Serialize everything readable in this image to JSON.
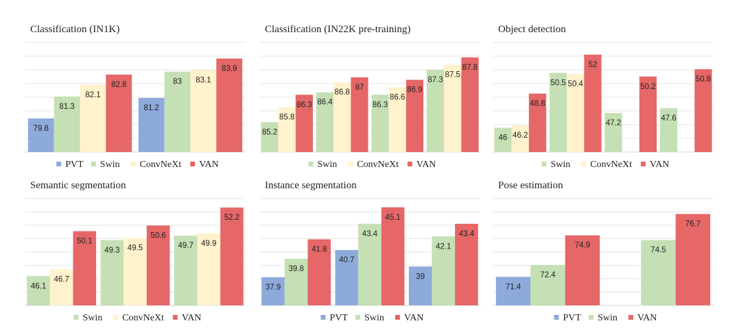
{
  "colors": {
    "PVT": "#8eaadb",
    "Swin": "#c5e0b4",
    "ConvNeXt": "#fff2cc",
    "VAN": "#e56767"
  },
  "chart_data": [
    {
      "type": "bar",
      "title": "Classification (IN1K)",
      "legend": [
        "PVT",
        "Swin",
        "ConvNeXt",
        "VAN"
      ],
      "legend_position": "bottom",
      "ylim": [
        77.5,
        85
      ],
      "grid": true,
      "groups": [
        [
          {
            "series": "PVT",
            "value": 79.8,
            "label": "79.8"
          },
          {
            "series": "Swin",
            "value": 81.3,
            "label": "81.3"
          },
          {
            "series": "ConvNeXt",
            "value": 82.1,
            "label": "82.1"
          },
          {
            "series": "VAN",
            "value": 82.8,
            "label": "82.8"
          }
        ],
        [
          {
            "series": "PVT",
            "value": 81.2,
            "label": "81.2"
          },
          {
            "series": "Swin",
            "value": 83,
            "label": "83"
          },
          {
            "series": "ConvNeXt",
            "value": 83.1,
            "label": "83.1"
          },
          {
            "series": "VAN",
            "value": 83.9,
            "label": "83.9"
          }
        ]
      ]
    },
    {
      "type": "bar",
      "title": "Classification (IN22K pre-training)",
      "legend": [
        "Swin",
        "ConvNeXt",
        "VAN"
      ],
      "legend_position": "bottom",
      "ylim": [
        84.0,
        88.4
      ],
      "grid": true,
      "groups": [
        [
          {
            "series": "Swin",
            "value": 85.2,
            "label": "85.2"
          },
          {
            "series": "ConvNeXt",
            "value": 85.8,
            "label": "85.8"
          },
          {
            "series": "VAN",
            "value": 86.3,
            "label": "86.3"
          }
        ],
        [
          {
            "series": "Swin",
            "value": 86.4,
            "label": "86.4"
          },
          {
            "series": "ConvNeXt",
            "value": 86.8,
            "label": "86.8"
          },
          {
            "series": "VAN",
            "value": 87,
            "label": "87"
          }
        ],
        [
          {
            "series": "Swin",
            "value": 86.3,
            "label": "86.3"
          },
          {
            "series": "ConvNeXt",
            "value": 86.6,
            "label": "86.6"
          },
          {
            "series": "VAN",
            "value": 86.9,
            "label": "86.9"
          }
        ],
        [
          {
            "series": "Swin",
            "value": 87.3,
            "label": "87.3"
          },
          {
            "series": "ConvNeXt",
            "value": 87.5,
            "label": "87.5"
          },
          {
            "series": "VAN",
            "value": 87.8,
            "label": "87.8"
          }
        ]
      ]
    },
    {
      "type": "bar",
      "title": "Object detection",
      "legend": [
        "Swin",
        "ConvNeXt",
        "VAN"
      ],
      "legend_position": "bottom",
      "ylim": [
        44,
        53
      ],
      "grid": true,
      "groups": [
        [
          {
            "series": "Swin",
            "value": 46,
            "label": "46"
          },
          {
            "series": "ConvNeXt",
            "value": 46.2,
            "label": "46.2"
          },
          {
            "series": "VAN",
            "value": 48.8,
            "label": "48.8"
          }
        ],
        [
          {
            "series": "Swin",
            "value": 50.5,
            "label": "50.5"
          },
          {
            "series": "ConvNeXt",
            "value": 50.4,
            "label": "50.4"
          },
          {
            "series": "VAN",
            "value": 52,
            "label": "52"
          }
        ],
        [
          {
            "series": "Swin",
            "value": 47.2,
            "label": "47.2"
          },
          {
            "series": "ConvNeXt",
            "value": null,
            "label": ""
          },
          {
            "series": "VAN",
            "value": 50.2,
            "label": "50.2"
          }
        ],
        [
          {
            "series": "Swin",
            "value": 47.6,
            "label": "47.6"
          },
          {
            "series": "ConvNeXt",
            "value": null,
            "label": ""
          },
          {
            "series": "VAN",
            "value": 50.8,
            "label": "50.8"
          }
        ]
      ]
    },
    {
      "type": "bar",
      "title": "Semantic segmentation",
      "legend": [
        "Swin",
        "ConvNeXt",
        "VAN"
      ],
      "legend_position": "bottom",
      "ylim": [
        43.5,
        53
      ],
      "grid": true,
      "groups": [
        [
          {
            "series": "Swin",
            "value": 46.1,
            "label": "46.1"
          },
          {
            "series": "ConvNeXt",
            "value": 46.7,
            "label": "46.7"
          },
          {
            "series": "VAN",
            "value": 50.1,
            "label": "50.1"
          }
        ],
        [
          {
            "series": "Swin",
            "value": 49.3,
            "label": "49.3"
          },
          {
            "series": "ConvNeXt",
            "value": 49.5,
            "label": "49.5"
          },
          {
            "series": "VAN",
            "value": 50.6,
            "label": "50.6"
          }
        ],
        [
          {
            "series": "Swin",
            "value": 49.7,
            "label": "49.7"
          },
          {
            "series": "ConvNeXt",
            "value": 49.9,
            "label": "49.9"
          },
          {
            "series": "VAN",
            "value": 52.2,
            "label": "52.2"
          }
        ]
      ]
    },
    {
      "type": "bar",
      "title": "Instance segmentation",
      "legend": [
        "PVT",
        "Swin",
        "VAN"
      ],
      "legend_position": "bottom",
      "ylim": [
        35,
        46
      ],
      "grid": true,
      "groups": [
        [
          {
            "series": "PVT",
            "value": 37.9,
            "label": "37.9"
          },
          {
            "series": "Swin",
            "value": 39.8,
            "label": "39.8"
          },
          {
            "series": "VAN",
            "value": 41.8,
            "label": "41.8"
          }
        ],
        [
          {
            "series": "PVT",
            "value": 40.7,
            "label": "40.7"
          },
          {
            "series": "Swin",
            "value": 43.4,
            "label": "43.4"
          },
          {
            "series": "VAN",
            "value": 45.1,
            "label": "45.1"
          }
        ],
        [
          {
            "series": "PVT",
            "value": 39,
            "label": "39"
          },
          {
            "series": "Swin",
            "value": 42.1,
            "label": "42.1"
          },
          {
            "series": "VAN",
            "value": 43.4,
            "label": "43.4"
          }
        ]
      ]
    },
    {
      "type": "bar",
      "title": "Pose estimation",
      "legend": [
        "PVT",
        "Swin",
        "VAN"
      ],
      "legend_position": "bottom",
      "ylim": [
        69,
        78
      ],
      "grid": true,
      "groups": [
        [
          {
            "series": "PVT",
            "value": 71.4,
            "label": "71.4"
          },
          {
            "series": "Swin",
            "value": 72.4,
            "label": "72.4"
          },
          {
            "series": "VAN",
            "value": 74.9,
            "label": "74.9"
          }
        ],
        [
          {
            "series": "PVT",
            "value": null,
            "label": ""
          },
          {
            "series": "Swin",
            "value": 74.5,
            "label": "74.5"
          },
          {
            "series": "VAN",
            "value": 76.7,
            "label": "76.7"
          }
        ]
      ]
    }
  ]
}
